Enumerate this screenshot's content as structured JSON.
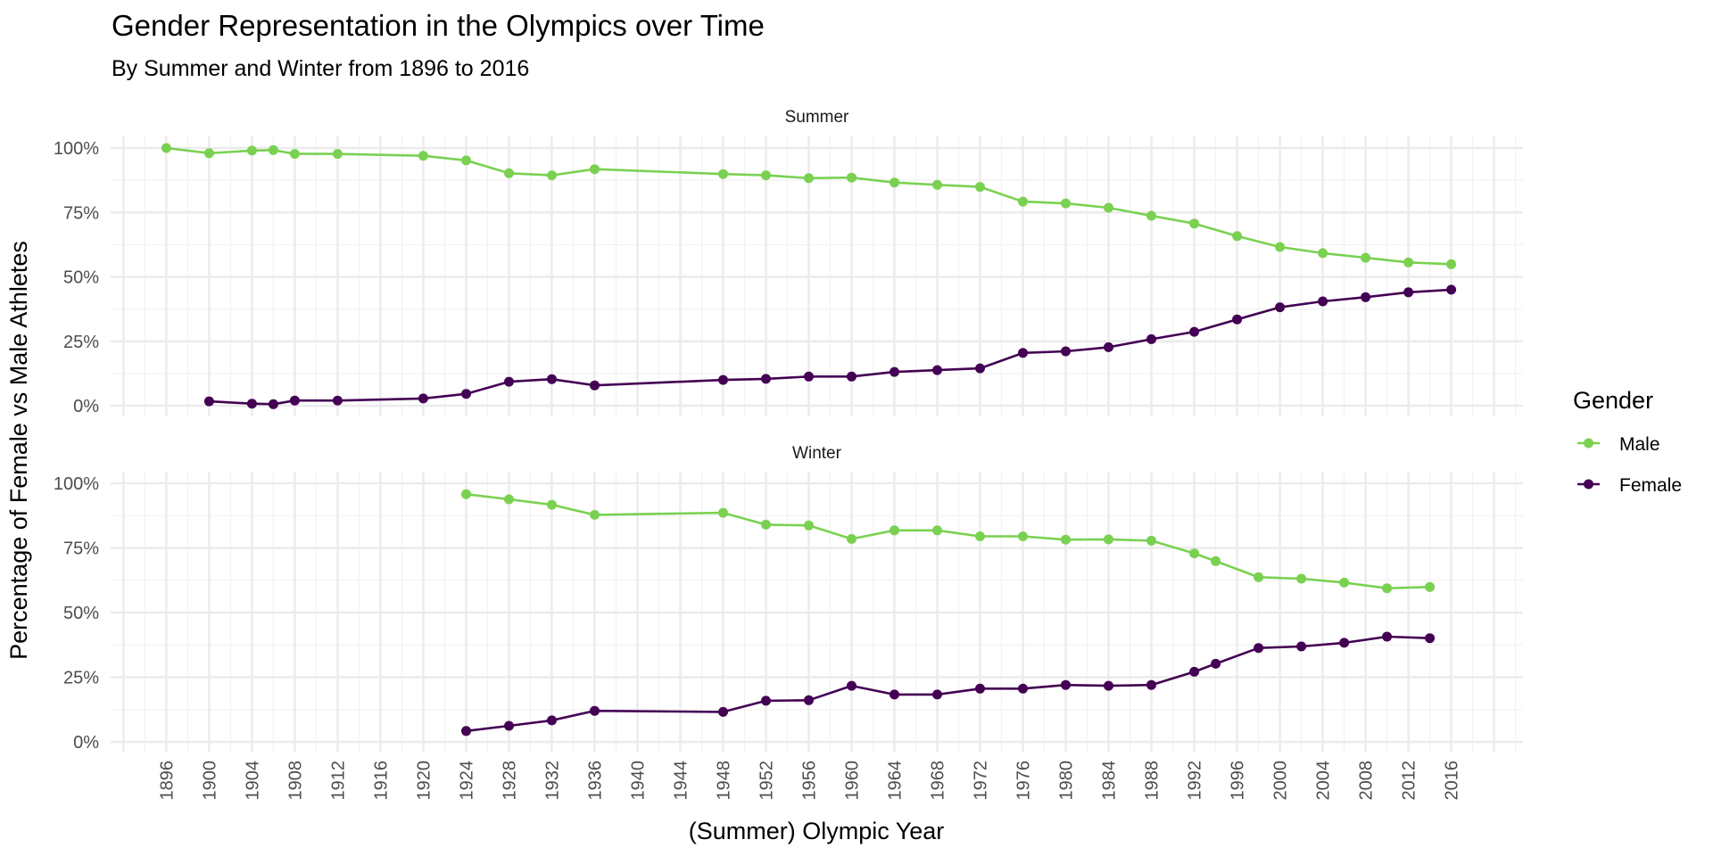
{
  "chart_data": {
    "type": "line",
    "title": "Gender Representation in the Olympics over Time",
    "subtitle": "By Summer and Winter from 1896 to 2016",
    "xlabel": "(Summer) Olympic Year",
    "ylabel": "Percentage of Female vs Male Athletes",
    "xlim": [
      1890.8,
      2022.7
    ],
    "ylim": [
      0,
      100
    ],
    "x_ticks": [
      1896,
      1900,
      1904,
      1908,
      1912,
      1916,
      1920,
      1924,
      1928,
      1932,
      1936,
      1940,
      1944,
      1948,
      1952,
      1956,
      1960,
      1964,
      1968,
      1972,
      1976,
      1980,
      1984,
      1988,
      1992,
      1996,
      2000,
      2004,
      2008,
      2012,
      2016
    ],
    "y_ticks": [
      0,
      25,
      50,
      75,
      100
    ],
    "y_tick_labels": [
      "0%",
      "25%",
      "50%",
      "75%",
      "100%"
    ],
    "grid": true,
    "legend": {
      "title": "Gender",
      "position": "right",
      "entries": [
        {
          "name": "Male",
          "color": "#7ad151"
        },
        {
          "name": "Female",
          "color": "#440154"
        }
      ]
    },
    "panels": [
      {
        "name": "Summer",
        "series": [
          {
            "name": "Male",
            "color": "#7ad151",
            "x": [
              1896,
              1900,
              1904,
              1906,
              1908,
              1912,
              1920,
              1924,
              1928,
              1932,
              1936,
              1948,
              1952,
              1956,
              1960,
              1964,
              1968,
              1972,
              1976,
              1980,
              1984,
              1988,
              1992,
              1996,
              2000,
              2004,
              2008,
              2012,
              2016
            ],
            "y": [
              100.0,
              98.0,
              99.0,
              99.2,
              97.7,
              97.7,
              97.0,
              95.2,
              90.2,
              89.4,
              91.8,
              89.9,
              89.4,
              88.3,
              88.5,
              86.6,
              85.7,
              84.9,
              79.2,
              78.5,
              76.8,
              73.7,
              70.7,
              65.8,
              61.6,
              59.2,
              57.4,
              55.6,
              54.9
            ]
          },
          {
            "name": "Female",
            "color": "#440154",
            "x": [
              1900,
              1904,
              1906,
              1908,
              1912,
              1920,
              1924,
              1928,
              1932,
              1936,
              1948,
              1952,
              1956,
              1960,
              1964,
              1968,
              1972,
              1976,
              1980,
              1984,
              1988,
              1992,
              1996,
              2000,
              2004,
              2008,
              2012,
              2016
            ],
            "y": [
              1.7,
              0.8,
              0.6,
              2.0,
              2.0,
              2.8,
              4.6,
              9.3,
              10.3,
              7.9,
              10.0,
              10.4,
              11.3,
              11.3,
              13.1,
              13.8,
              14.5,
              20.5,
              21.1,
              22.7,
              25.8,
              28.7,
              33.5,
              38.2,
              40.5,
              42.1,
              44.0,
              45.0
            ]
          }
        ]
      },
      {
        "name": "Winter",
        "series": [
          {
            "name": "Male",
            "color": "#7ad151",
            "x": [
              1924,
              1928,
              1932,
              1936,
              1948,
              1952,
              1956,
              1960,
              1964,
              1968,
              1972,
              1976,
              1980,
              1984,
              1988,
              1992,
              1994,
              1998,
              2002,
              2006,
              2010,
              2014
            ],
            "y": [
              95.8,
              93.8,
              91.7,
              87.8,
              88.6,
              84.0,
              83.7,
              78.5,
              81.8,
              81.8,
              79.5,
              79.5,
              78.2,
              78.3,
              77.8,
              72.9,
              69.9,
              63.7,
              63.1,
              61.6,
              59.4,
              59.9
            ]
          },
          {
            "name": "Female",
            "color": "#440154",
            "x": [
              1924,
              1928,
              1932,
              1936,
              1948,
              1952,
              1956,
              1960,
              1964,
              1968,
              1972,
              1976,
              1980,
              1984,
              1988,
              1992,
              1994,
              1998,
              2002,
              2006,
              2010,
              2014
            ],
            "y": [
              4.2,
              6.2,
              8.3,
              12.0,
              11.6,
              15.9,
              16.1,
              21.7,
              18.3,
              18.3,
              20.6,
              20.6,
              22.0,
              21.7,
              22.0,
              27.1,
              30.2,
              36.3,
              36.9,
              38.3,
              40.7,
              40.1
            ]
          }
        ]
      }
    ]
  }
}
